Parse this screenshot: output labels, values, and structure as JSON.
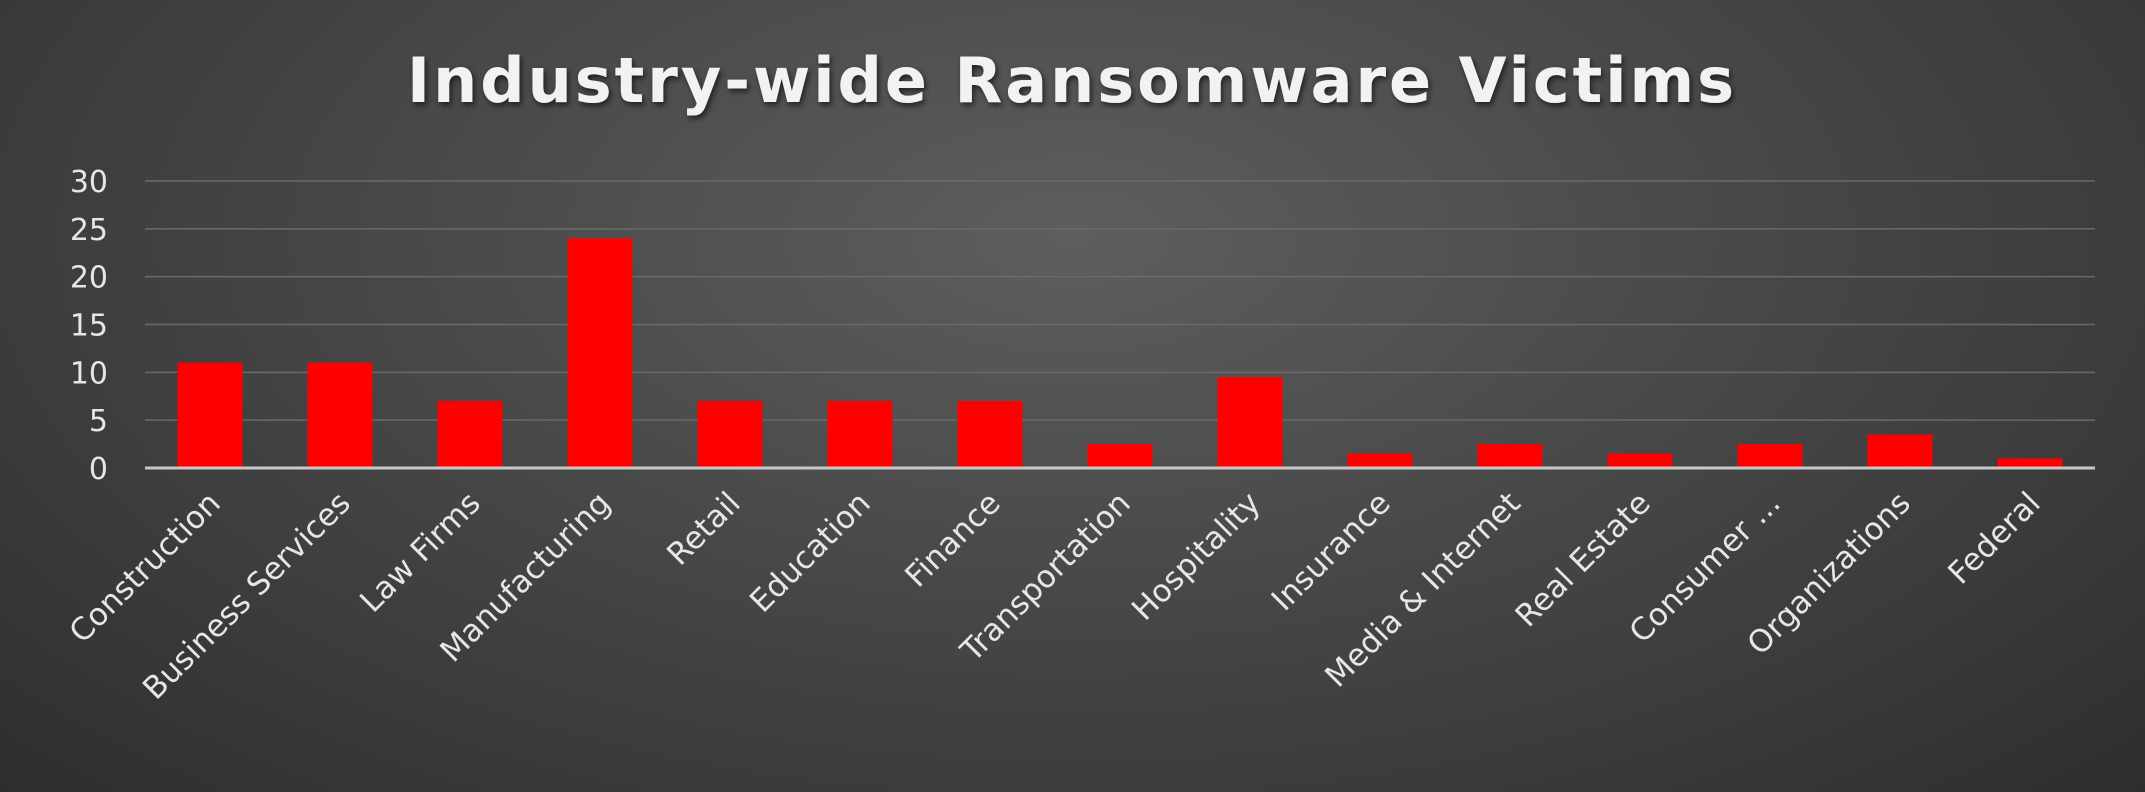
{
  "chart_data": {
    "type": "bar",
    "title": "Industry-wide Ransomware Victims",
    "xlabel": "",
    "ylabel": "",
    "categories": [
      "Construction",
      "Business Services",
      "Law Firms",
      "Manufacturing",
      "Retail",
      "Education",
      "Finance",
      "Transportation",
      "Hospitality",
      "Insurance",
      "Media & Internet",
      "Real Estate",
      "Consumer ...",
      "Organizations",
      "Federal"
    ],
    "values": [
      11,
      11,
      7,
      24,
      7,
      7,
      7,
      2.5,
      9.5,
      1.5,
      2.5,
      1.5,
      2.5,
      3.5,
      1
    ],
    "ylim": [
      0,
      30
    ],
    "yticks": [
      0,
      5,
      10,
      15,
      20,
      25,
      30
    ],
    "grid": true,
    "legend": "none",
    "colors": {
      "bar": "#ff0000",
      "grid": "#6a6a6a",
      "axis": "#c8c8c8",
      "text": "#e6e6e6",
      "title": "#f2f2f2"
    }
  }
}
